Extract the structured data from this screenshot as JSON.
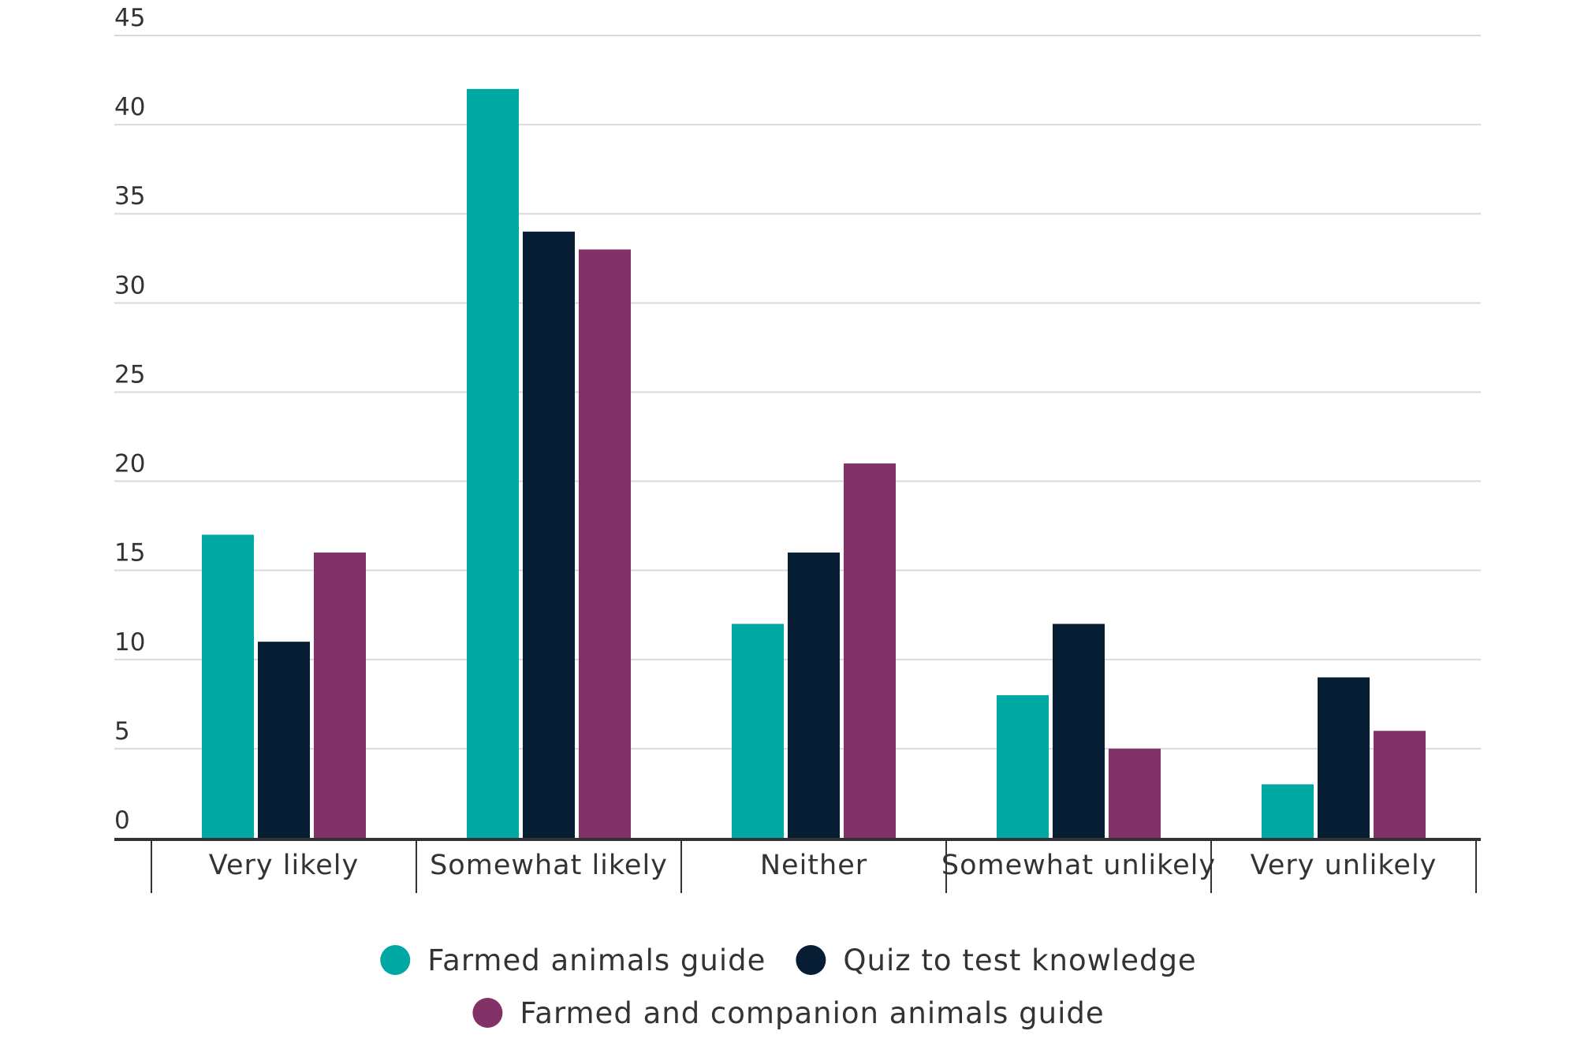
{
  "chart_data": {
    "type": "bar",
    "categories": [
      "Very likely",
      "Somewhat likely",
      "Neither",
      "Somewhat unlikely",
      "Very unlikely"
    ],
    "series": [
      {
        "name": "Farmed animals guide",
        "values": [
          17,
          42,
          12,
          8,
          3
        ],
        "color": "#00A8A3"
      },
      {
        "name": "Quiz to test knowledge",
        "values": [
          11,
          34,
          16,
          12,
          9
        ],
        "color": "#061D33"
      },
      {
        "name": "Farmed and companion animals guide",
        "values": [
          16,
          33,
          21,
          5,
          6
        ],
        "color": "#833268"
      }
    ],
    "y_ticks": [
      "0",
      "5",
      "10",
      "15",
      "20",
      "25",
      "30",
      "35",
      "40",
      "45"
    ],
    "ylim": [
      0,
      45
    ],
    "grid": true,
    "legend_position": "bottom-center",
    "title": "",
    "xlabel": "",
    "ylabel": ""
  }
}
